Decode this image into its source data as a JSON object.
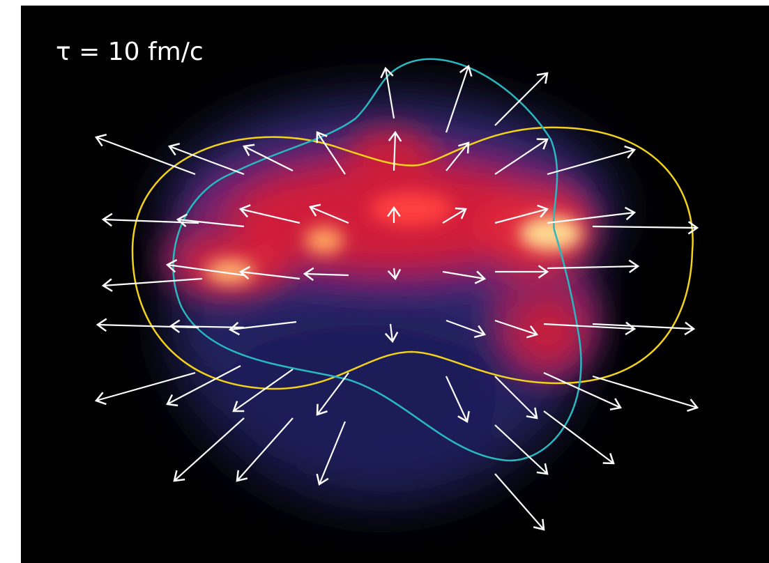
{
  "label": "τ = 10 fm/c"
}
